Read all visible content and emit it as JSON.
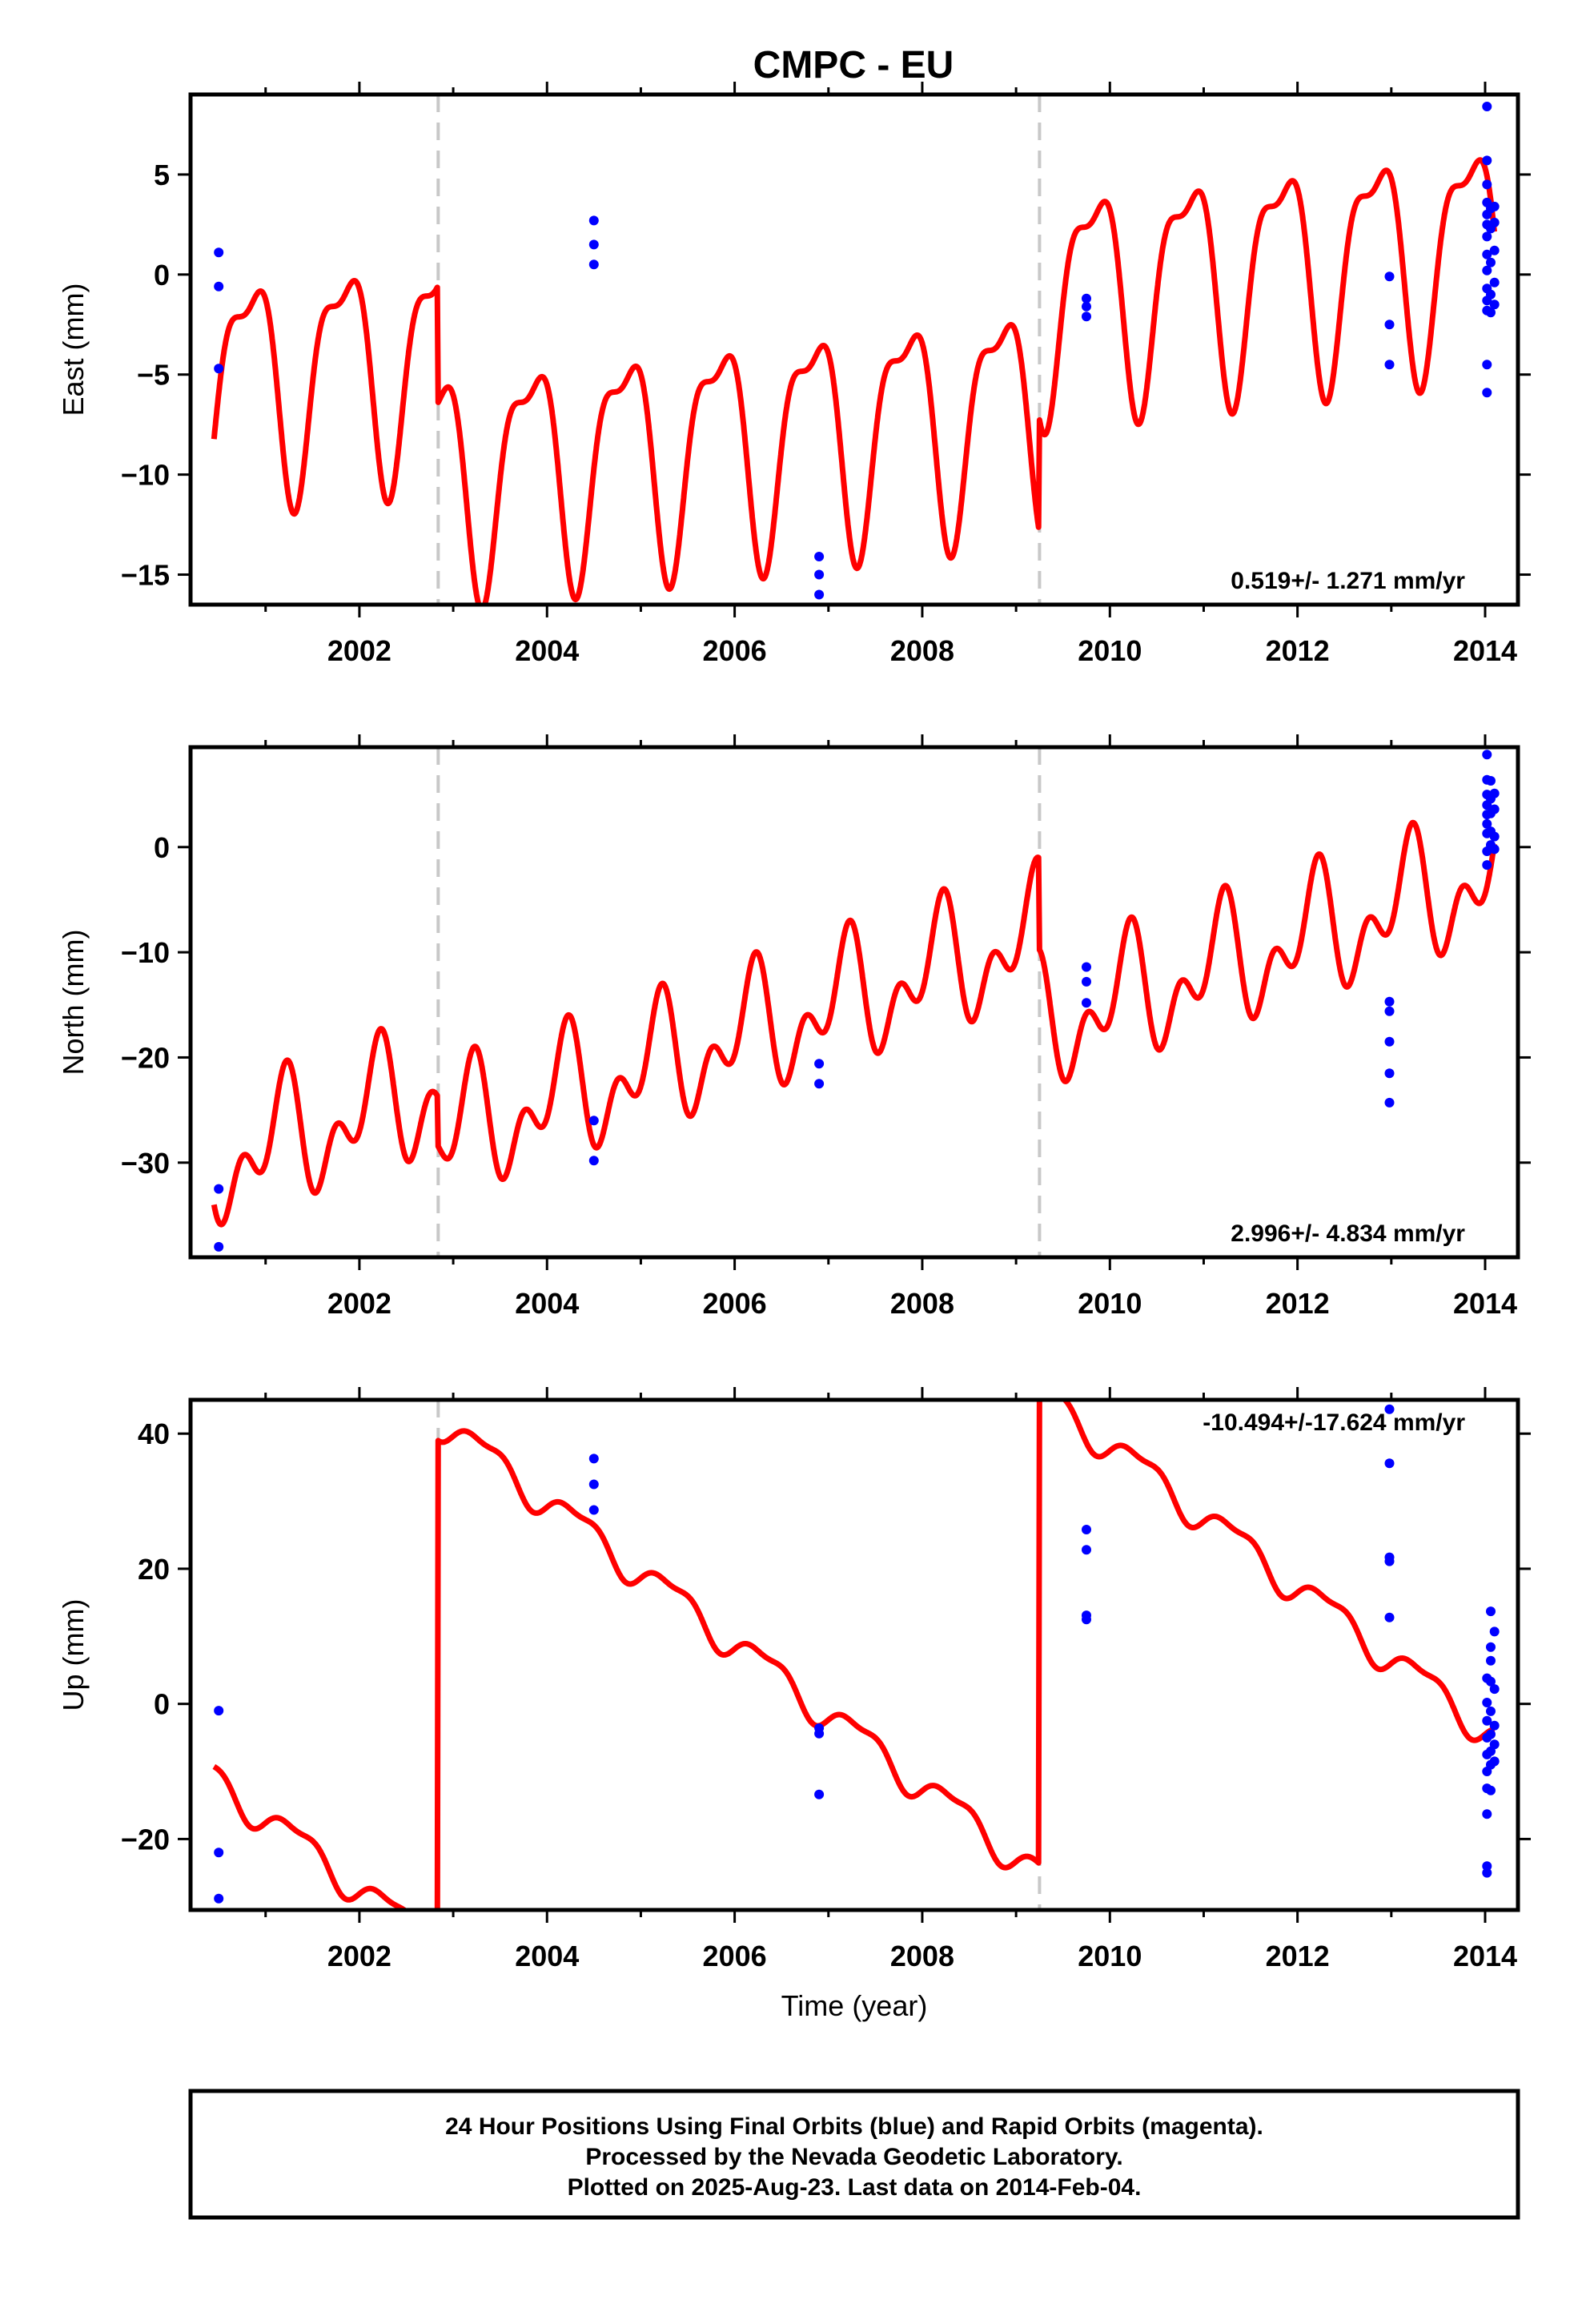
{
  "title": "CMPC - EU",
  "colors": {
    "model": "#ff0000",
    "final_orbits": "#0000ff",
    "break_line": "#c8c8c8",
    "frame": "#000000"
  },
  "xaxis": {
    "label": "Time (year)",
    "range": [
      2000.2,
      2014.35
    ],
    "ticks": [
      2002,
      2004,
      2006,
      2008,
      2010,
      2012,
      2014
    ]
  },
  "breaks": [
    2002.84,
    2009.25
  ],
  "chart_data": [
    {
      "type": "scatter",
      "component": "east",
      "ylabel": "East (mm)",
      "ylim": [
        -16.5,
        9
      ],
      "yticks": [
        -15,
        -10,
        -5,
        0,
        5
      ],
      "rate_text": "0.519+/- 1.271 mm/yr",
      "series": [
        {
          "kind": "model",
          "segments": [
            {
              "t0": 2000.45,
              "t1": 2002.83,
              "offset": -4.8,
              "rate": 0.519,
              "ref": 2001.5
            },
            {
              "t0": 2002.84,
              "t1": 2009.24,
              "offset": -8.3,
              "rate": 0.519,
              "ref": 2006.0
            },
            {
              "t0": 2009.25,
              "t1": 2014.1,
              "offset": 0.3,
              "rate": 0.519,
              "ref": 2011.7
            }
          ],
          "annual_amp": 5.2,
          "semiannual_amp": 1.9,
          "annual_phase": 2.7,
          "semiannual_phase": 1.0
        },
        {
          "kind": "observations",
          "points": [
            [
              2000.5,
              1.1
            ],
            [
              2000.5,
              -0.6
            ],
            [
              2000.5,
              -4.7
            ],
            [
              2004.5,
              2.7
            ],
            [
              2004.5,
              1.5
            ],
            [
              2004.5,
              0.5
            ],
            [
              2006.9,
              -14.1
            ],
            [
              2006.9,
              -15.0
            ],
            [
              2006.9,
              -16.0
            ],
            [
              2009.75,
              -1.2
            ],
            [
              2009.75,
              -1.6
            ],
            [
              2009.75,
              -2.1
            ],
            [
              2012.98,
              -0.1
            ],
            [
              2012.98,
              -2.5
            ],
            [
              2012.98,
              -4.5
            ],
            [
              2014.02,
              8.4
            ],
            [
              2014.02,
              5.7
            ],
            [
              2014.02,
              4.5
            ],
            [
              2014.02,
              3.6
            ],
            [
              2014.02,
              3.0
            ],
            [
              2014.02,
              2.5
            ],
            [
              2014.02,
              1.9
            ],
            [
              2014.02,
              1.0
            ],
            [
              2014.02,
              0.2
            ],
            [
              2014.02,
              -0.7
            ],
            [
              2014.02,
              -1.3
            ],
            [
              2014.02,
              -1.8
            ],
            [
              2014.02,
              -4.5
            ],
            [
              2014.02,
              -5.9
            ],
            [
              2014.06,
              3.3
            ],
            [
              2014.06,
              2.3
            ],
            [
              2014.06,
              0.6
            ],
            [
              2014.06,
              -1.0
            ],
            [
              2014.06,
              -1.9
            ],
            [
              2014.1,
              3.4
            ],
            [
              2014.1,
              2.6
            ],
            [
              2014.1,
              1.2
            ],
            [
              2014.1,
              -0.4
            ],
            [
              2014.1,
              -1.5
            ]
          ]
        }
      ]
    },
    {
      "type": "scatter",
      "component": "north",
      "ylabel": "North (mm)",
      "ylim": [
        -39,
        9.5
      ],
      "yticks": [
        -30,
        -20,
        -10,
        0
      ],
      "rate_text": "2.996+/- 4.834 mm/yr",
      "series": [
        {
          "kind": "model",
          "segments": [
            {
              "t0": 2000.45,
              "t1": 2002.83,
              "offset": -27.0,
              "rate": 2.996,
              "ref": 2001.5
            },
            {
              "t0": 2002.84,
              "t1": 2009.24,
              "offset": -18.2,
              "rate": 2.996,
              "ref": 2006.0
            },
            {
              "t0": 2009.25,
              "t1": 2014.1,
              "offset": -9.8,
              "rate": 2.996,
              "ref": 2011.7
            }
          ],
          "annual_amp": 4.3,
          "semiannual_amp": 3.6,
          "annual_phase": 0.5,
          "semiannual_phase": -1.5
        },
        {
          "kind": "observations",
          "points": [
            [
              2000.5,
              -32.5
            ],
            [
              2000.5,
              -38.0
            ],
            [
              2004.5,
              -26.0
            ],
            [
              2004.5,
              -29.8
            ],
            [
              2006.9,
              -20.6
            ],
            [
              2006.9,
              -22.5
            ],
            [
              2009.75,
              -11.4
            ],
            [
              2009.75,
              -12.8
            ],
            [
              2009.75,
              -14.8
            ],
            [
              2012.98,
              -14.7
            ],
            [
              2012.98,
              -15.6
            ],
            [
              2012.98,
              -18.5
            ],
            [
              2012.98,
              -21.5
            ],
            [
              2012.98,
              -24.3
            ],
            [
              2014.02,
              8.8
            ],
            [
              2014.02,
              6.4
            ],
            [
              2014.02,
              5.0
            ],
            [
              2014.02,
              4.0
            ],
            [
              2014.02,
              3.1
            ],
            [
              2014.02,
              2.2
            ],
            [
              2014.02,
              1.3
            ],
            [
              2014.02,
              -0.4
            ],
            [
              2014.02,
              -1.7
            ],
            [
              2014.06,
              6.3
            ],
            [
              2014.06,
              4.6
            ],
            [
              2014.06,
              3.2
            ],
            [
              2014.06,
              1.5
            ],
            [
              2014.06,
              0.2
            ],
            [
              2014.1,
              5.1
            ],
            [
              2014.1,
              3.6
            ],
            [
              2014.1,
              1.0
            ],
            [
              2014.1,
              -0.2
            ]
          ]
        }
      ]
    },
    {
      "type": "scatter",
      "component": "up",
      "ylabel": "Up (mm)",
      "ylim": [
        -30.5,
        45
      ],
      "yticks": [
        -20,
        0,
        20,
        40
      ],
      "rate_text": "-10.494+/-17.624 mm/yr",
      "series": [
        {
          "kind": "model",
          "segments": [
            {
              "t0": 2000.45,
              "t1": 2002.83,
              "offset": -22.0,
              "rate": -10.494,
              "ref": 2001.5
            },
            {
              "t0": 2002.84,
              "t1": 2009.24,
              "offset": 9.0,
              "rate": -10.494,
              "ref": 2006.0
            },
            {
              "t0": 2009.25,
              "t1": 2014.1,
              "offset": 20.5,
              "rate": -10.494,
              "ref": 2011.7
            }
          ],
          "annual_amp": 2.3,
          "semiannual_amp": 0.9,
          "annual_phase": -0.6,
          "semiannual_phase": 0.5
        },
        {
          "kind": "observations",
          "points": [
            [
              2000.5,
              -1.0
            ],
            [
              2000.5,
              -22.0
            ],
            [
              2000.5,
              -28.8
            ],
            [
              2004.5,
              36.3
            ],
            [
              2004.5,
              32.5
            ],
            [
              2004.5,
              28.7
            ],
            [
              2006.9,
              -3.6
            ],
            [
              2006.9,
              -4.4
            ],
            [
              2006.9,
              -13.4
            ],
            [
              2009.75,
              25.8
            ],
            [
              2009.75,
              22.8
            ],
            [
              2009.75,
              13.1
            ],
            [
              2009.75,
              12.5
            ],
            [
              2012.98,
              43.6
            ],
            [
              2012.98,
              35.6
            ],
            [
              2012.98,
              21.7
            ],
            [
              2012.98,
              21.1
            ],
            [
              2012.98,
              12.8
            ],
            [
              2014.02,
              3.8
            ],
            [
              2014.02,
              0.2
            ],
            [
              2014.02,
              -2.5
            ],
            [
              2014.02,
              -5.0
            ],
            [
              2014.02,
              -7.5
            ],
            [
              2014.02,
              -10.0
            ],
            [
              2014.02,
              -12.5
            ],
            [
              2014.02,
              -16.3
            ],
            [
              2014.02,
              -24.0
            ],
            [
              2014.02,
              -25.0
            ],
            [
              2014.06,
              13.7
            ],
            [
              2014.06,
              8.4
            ],
            [
              2014.06,
              6.4
            ],
            [
              2014.06,
              3.3
            ],
            [
              2014.06,
              -1.1
            ],
            [
              2014.06,
              -4.5
            ],
            [
              2014.06,
              -7.0
            ],
            [
              2014.06,
              -9.0
            ],
            [
              2014.06,
              -12.8
            ],
            [
              2014.1,
              10.7
            ],
            [
              2014.1,
              2.2
            ],
            [
              2014.1,
              -3.2
            ],
            [
              2014.1,
              -6.0
            ],
            [
              2014.1,
              -8.5
            ]
          ]
        }
      ]
    }
  ],
  "footer": {
    "line1": "24 Hour Positions Using Final Orbits (blue) and Rapid Orbits (magenta).",
    "line2": "Processed by the Nevada Geodetic Laboratory.",
    "line3": "Plotted on 2025-Aug-23. Last data on 2014-Feb-04."
  }
}
